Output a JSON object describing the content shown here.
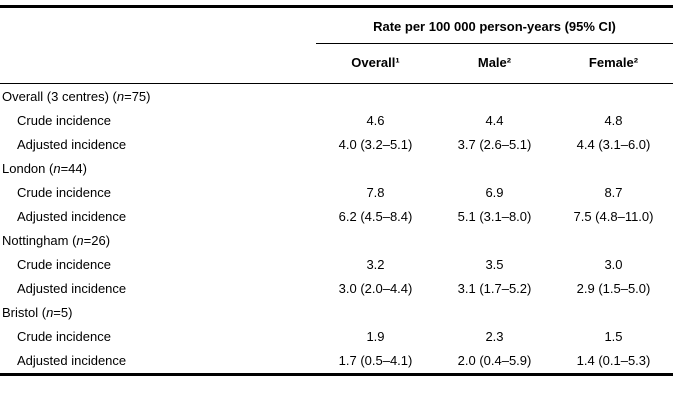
{
  "table": {
    "spanner": "Rate per 100 000 person-years (95% CI)",
    "columns": [
      "Overall¹",
      "Male²",
      "Female²"
    ],
    "groups": [
      {
        "label": "Overall (3 centres) (n=75)",
        "rows": [
          {
            "label": "Crude incidence",
            "values": [
              "4.6",
              "4.4",
              "4.8"
            ]
          },
          {
            "label": "Adjusted incidence",
            "values": [
              "4.0 (3.2–5.1)",
              "3.7 (2.6–5.1)",
              "4.4 (3.1–6.0)"
            ]
          }
        ]
      },
      {
        "label": "London (n=44)",
        "rows": [
          {
            "label": "Crude incidence",
            "values": [
              "7.8",
              "6.9",
              "8.7"
            ]
          },
          {
            "label": "Adjusted incidence",
            "values": [
              "6.2 (4.5–8.4)",
              "5.1 (3.1–8.0)",
              "7.5 (4.8–11.0)"
            ]
          }
        ]
      },
      {
        "label": "Nottingham (n=26)",
        "rows": [
          {
            "label": "Crude incidence",
            "values": [
              "3.2",
              "3.5",
              "3.0"
            ]
          },
          {
            "label": "Adjusted incidence",
            "values": [
              "3.0 (2.0–4.4)",
              "3.1 (1.7–5.2)",
              "2.9 (1.5–5.0)"
            ]
          }
        ]
      },
      {
        "label": "Bristol (n=5)",
        "rows": [
          {
            "label": "Crude incidence",
            "values": [
              "1.9",
              "2.3",
              "1.5"
            ]
          },
          {
            "label": "Adjusted incidence",
            "values": [
              "1.7 (0.5–4.1)",
              "2.0 (0.4–5.9)",
              "1.4 (0.1–5.3)"
            ]
          }
        ]
      }
    ]
  }
}
